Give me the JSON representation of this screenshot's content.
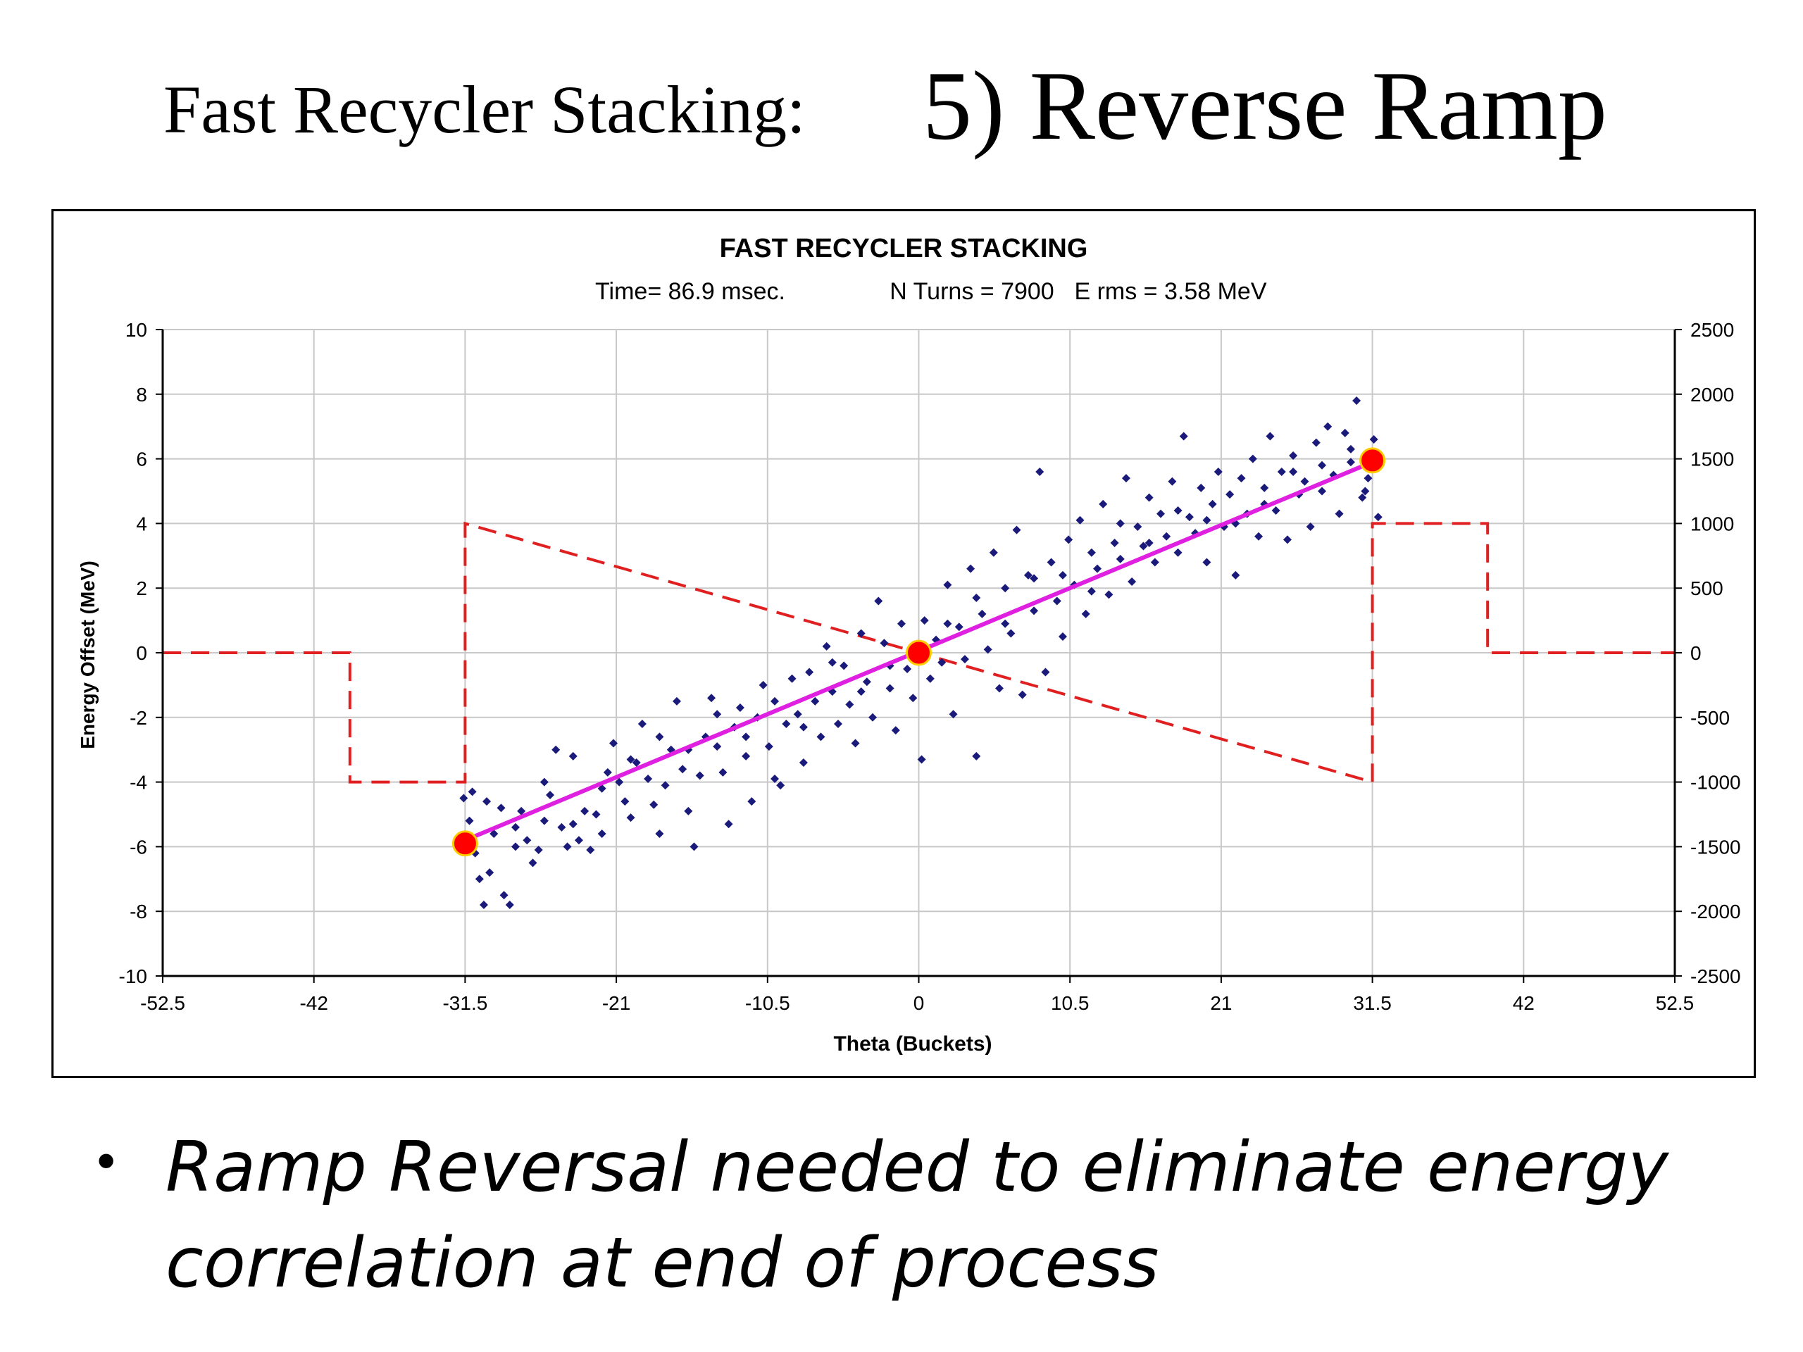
{
  "slide": {
    "title_left": "Fast Recycler Stacking:",
    "title_right": "5)  Reverse Ramp",
    "bullet": "Ramp Reversal needed to eliminate energy correlation at end of process",
    "bullet_symbol": "•"
  },
  "chart_data": {
    "type": "scatter",
    "title": "FAST RECYCLER STACKING",
    "subtitle": {
      "time": "Time= 86.9 msec.",
      "turns": "N Turns = 7900",
      "erms": "E rms = 3.58 MeV"
    },
    "xlabel": "Theta (Buckets)",
    "ylabel": "Energy Offset (MeV)",
    "xlim": [
      -52.5,
      52.5
    ],
    "ylim": [
      -10,
      10
    ],
    "y2lim": [
      -2500,
      2500
    ],
    "x_ticks": [
      "-52.5",
      "-42",
      "-31.5",
      "-21",
      "-10.5",
      "0",
      "10.5",
      "21",
      "31.5",
      "42",
      "52.5"
    ],
    "y_ticks": [
      "10",
      "8",
      "6",
      "4",
      "2",
      "0",
      "-2",
      "-4",
      "-6",
      "-8",
      "-10"
    ],
    "y2_ticks": [
      "2500",
      "2000",
      "1500",
      "1000",
      "500",
      "0",
      "-500",
      "-1000",
      "-1500",
      "-2000",
      "-2500"
    ],
    "grid": true,
    "colors": {
      "particles": "#1a1a7a",
      "ramp": "#e02020",
      "fit_line": "#e020e0",
      "markers": "#ff0000",
      "marker_edge": "#ffcc00",
      "grid": "#c8c8c8"
    },
    "series": [
      {
        "kind": "ramp-dashed-right-axis",
        "points": [
          [
            -52.5,
            0
          ],
          [
            -39.5,
            0
          ],
          [
            -39.5,
            -1000
          ],
          [
            -31.5,
            -1000
          ],
          [
            -31.5,
            1000
          ],
          [
            31.5,
            -1000
          ],
          [
            31.5,
            1000
          ],
          [
            39.5,
            1000
          ],
          [
            39.5,
            0
          ],
          [
            52.5,
            0
          ]
        ]
      },
      {
        "kind": "fit-line",
        "points": [
          [
            -31.5,
            -5.8
          ],
          [
            31.5,
            5.9
          ]
        ]
      },
      {
        "kind": "markers",
        "points": [
          [
            -31.5,
            -5.9
          ],
          [
            0,
            0
          ],
          [
            31.5,
            5.95
          ]
        ]
      },
      {
        "kind": "particles",
        "points": [
          [
            -31.6,
            -4.5
          ],
          [
            -31.2,
            -5.2
          ],
          [
            -30.8,
            -6.2
          ],
          [
            -30.5,
            -7.0
          ],
          [
            -30.2,
            -7.8
          ],
          [
            -29.8,
            -6.8
          ],
          [
            -29.5,
            -5.6
          ],
          [
            -29.0,
            -4.8
          ],
          [
            -28.8,
            -7.5
          ],
          [
            -28.4,
            -7.8
          ],
          [
            -28.0,
            -6.0
          ],
          [
            -27.6,
            -4.9
          ],
          [
            -27.2,
            -5.8
          ],
          [
            -26.8,
            -6.5
          ],
          [
            -26.4,
            -6.1
          ],
          [
            -26.0,
            -5.2
          ],
          [
            -25.6,
            -4.4
          ],
          [
            -25.2,
            -3.0
          ],
          [
            -24.8,
            -5.4
          ],
          [
            -24.4,
            -6.0
          ],
          [
            -24.0,
            -5.3
          ],
          [
            -23.6,
            -5.8
          ],
          [
            -23.2,
            -4.9
          ],
          [
            -22.8,
            -6.1
          ],
          [
            -22.4,
            -5.0
          ],
          [
            -22.0,
            -4.2
          ],
          [
            -21.6,
            -3.7
          ],
          [
            -21.2,
            -2.8
          ],
          [
            -20.8,
            -4.0
          ],
          [
            -20.4,
            -4.6
          ],
          [
            -20.0,
            -5.1
          ],
          [
            -19.6,
            -3.4
          ],
          [
            -19.2,
            -2.2
          ],
          [
            -18.8,
            -3.9
          ],
          [
            -18.4,
            -4.7
          ],
          [
            -18.0,
            -5.6
          ],
          [
            -17.6,
            -4.1
          ],
          [
            -17.2,
            -3.0
          ],
          [
            -16.8,
            -1.5
          ],
          [
            -16.4,
            -3.6
          ],
          [
            -16.0,
            -4.9
          ],
          [
            -15.6,
            -6.0
          ],
          [
            -15.2,
            -3.8
          ],
          [
            -14.8,
            -2.6
          ],
          [
            -14.4,
            -1.4
          ],
          [
            -14.0,
            -2.9
          ],
          [
            -13.6,
            -3.7
          ],
          [
            -13.2,
            -5.3
          ],
          [
            -12.8,
            -2.3
          ],
          [
            -12.4,
            -1.7
          ],
          [
            -12.0,
            -3.2
          ],
          [
            -11.6,
            -4.6
          ],
          [
            -11.2,
            -2.0
          ],
          [
            -10.8,
            -1.0
          ],
          [
            -10.4,
            -2.9
          ],
          [
            -10.0,
            -3.9
          ],
          [
            -9.6,
            -4.1
          ],
          [
            -9.2,
            -2.2
          ],
          [
            -8.8,
            -0.8
          ],
          [
            -8.4,
            -1.9
          ],
          [
            -8.0,
            -3.4
          ],
          [
            -7.6,
            -0.6
          ],
          [
            -7.2,
            -1.5
          ],
          [
            -6.8,
            -2.6
          ],
          [
            -6.4,
            0.2
          ],
          [
            -6.0,
            -1.2
          ],
          [
            -5.6,
            -2.2
          ],
          [
            -5.2,
            -0.4
          ],
          [
            -4.8,
            -1.6
          ],
          [
            -4.4,
            -2.8
          ],
          [
            -4.0,
            0.6
          ],
          [
            -3.6,
            -0.9
          ],
          [
            -3.2,
            -2.0
          ],
          [
            -2.8,
            1.6
          ],
          [
            -2.4,
            0.3
          ],
          [
            -2.0,
            -1.1
          ],
          [
            -1.6,
            -2.4
          ],
          [
            -1.2,
            0.9
          ],
          [
            -0.8,
            -0.5
          ],
          [
            -0.4,
            -1.4
          ],
          [
            0.2,
            -3.3
          ],
          [
            0.4,
            1.0
          ],
          [
            0.8,
            -0.8
          ],
          [
            1.2,
            0.4
          ],
          [
            1.6,
            -0.3
          ],
          [
            2.0,
            2.1
          ],
          [
            2.4,
            -1.9
          ],
          [
            2.8,
            0.8
          ],
          [
            3.2,
            -0.2
          ],
          [
            3.6,
            2.6
          ],
          [
            4.0,
            -3.2
          ],
          [
            4.4,
            1.2
          ],
          [
            4.8,
            0.1
          ],
          [
            5.2,
            3.1
          ],
          [
            5.6,
            -1.1
          ],
          [
            6.0,
            2.0
          ],
          [
            6.4,
            0.6
          ],
          [
            6.8,
            3.8
          ],
          [
            7.2,
            -1.3
          ],
          [
            7.6,
            2.4
          ],
          [
            8.0,
            1.3
          ],
          [
            8.4,
            5.6
          ],
          [
            8.8,
            -0.6
          ],
          [
            9.2,
            2.8
          ],
          [
            9.6,
            1.6
          ],
          [
            10.0,
            0.5
          ],
          [
            10.4,
            3.5
          ],
          [
            10.8,
            2.1
          ],
          [
            11.2,
            4.1
          ],
          [
            11.6,
            1.2
          ],
          [
            12.0,
            3.1
          ],
          [
            12.4,
            2.6
          ],
          [
            12.8,
            4.6
          ],
          [
            13.2,
            1.8
          ],
          [
            13.6,
            3.4
          ],
          [
            14.0,
            2.9
          ],
          [
            14.4,
            5.4
          ],
          [
            14.8,
            2.2
          ],
          [
            15.2,
            3.9
          ],
          [
            15.6,
            3.3
          ],
          [
            16.0,
            4.8
          ],
          [
            16.4,
            2.8
          ],
          [
            16.8,
            4.3
          ],
          [
            17.2,
            3.6
          ],
          [
            17.6,
            5.3
          ],
          [
            18.0,
            3.1
          ],
          [
            18.4,
            6.7
          ],
          [
            18.8,
            4.2
          ],
          [
            19.2,
            3.7
          ],
          [
            19.6,
            5.1
          ],
          [
            20.0,
            2.8
          ],
          [
            20.4,
            4.6
          ],
          [
            20.8,
            5.6
          ],
          [
            21.2,
            3.9
          ],
          [
            21.6,
            4.9
          ],
          [
            22.0,
            2.4
          ],
          [
            22.4,
            5.4
          ],
          [
            22.8,
            4.3
          ],
          [
            23.2,
            6.0
          ],
          [
            23.6,
            3.6
          ],
          [
            24.0,
            5.1
          ],
          [
            24.4,
            6.7
          ],
          [
            24.8,
            4.4
          ],
          [
            25.2,
            5.6
          ],
          [
            25.6,
            3.5
          ],
          [
            26.0,
            6.1
          ],
          [
            26.4,
            4.9
          ],
          [
            26.8,
            5.3
          ],
          [
            27.2,
            3.9
          ],
          [
            27.6,
            6.5
          ],
          [
            28.0,
            5.0
          ],
          [
            28.4,
            7.0
          ],
          [
            28.8,
            5.5
          ],
          [
            29.2,
            4.3
          ],
          [
            29.6,
            6.8
          ],
          [
            30.0,
            5.9
          ],
          [
            30.4,
            7.8
          ],
          [
            30.8,
            4.8
          ],
          [
            31.2,
            5.4
          ],
          [
            31.6,
            6.6
          ],
          [
            31.9,
            4.2
          ],
          [
            -31.0,
            -4.3
          ],
          [
            -30.0,
            -4.6
          ],
          [
            -28.0,
            -5.4
          ],
          [
            -26.0,
            -4.0
          ],
          [
            -24.0,
            -3.2
          ],
          [
            -22.0,
            -5.6
          ],
          [
            -20.0,
            -3.3
          ],
          [
            -18.0,
            -2.6
          ],
          [
            -16.0,
            -3.0
          ],
          [
            -14.0,
            -1.9
          ],
          [
            -12.0,
            -2.6
          ],
          [
            -10.0,
            -1.5
          ],
          [
            -8.0,
            -2.3
          ],
          [
            -6.0,
            -0.3
          ],
          [
            -4.0,
            -1.2
          ],
          [
            -2.0,
            -0.4
          ],
          [
            2.0,
            0.9
          ],
          [
            4.0,
            1.7
          ],
          [
            6.0,
            0.9
          ],
          [
            8.0,
            2.3
          ],
          [
            10.0,
            2.4
          ],
          [
            12.0,
            1.9
          ],
          [
            14.0,
            4.0
          ],
          [
            16.0,
            3.4
          ],
          [
            18.0,
            4.4
          ],
          [
            20.0,
            4.1
          ],
          [
            22.0,
            4.0
          ],
          [
            24.0,
            4.6
          ],
          [
            26.0,
            5.6
          ],
          [
            28.0,
            5.8
          ],
          [
            30.0,
            6.3
          ],
          [
            31.0,
            5.0
          ]
        ]
      }
    ]
  }
}
